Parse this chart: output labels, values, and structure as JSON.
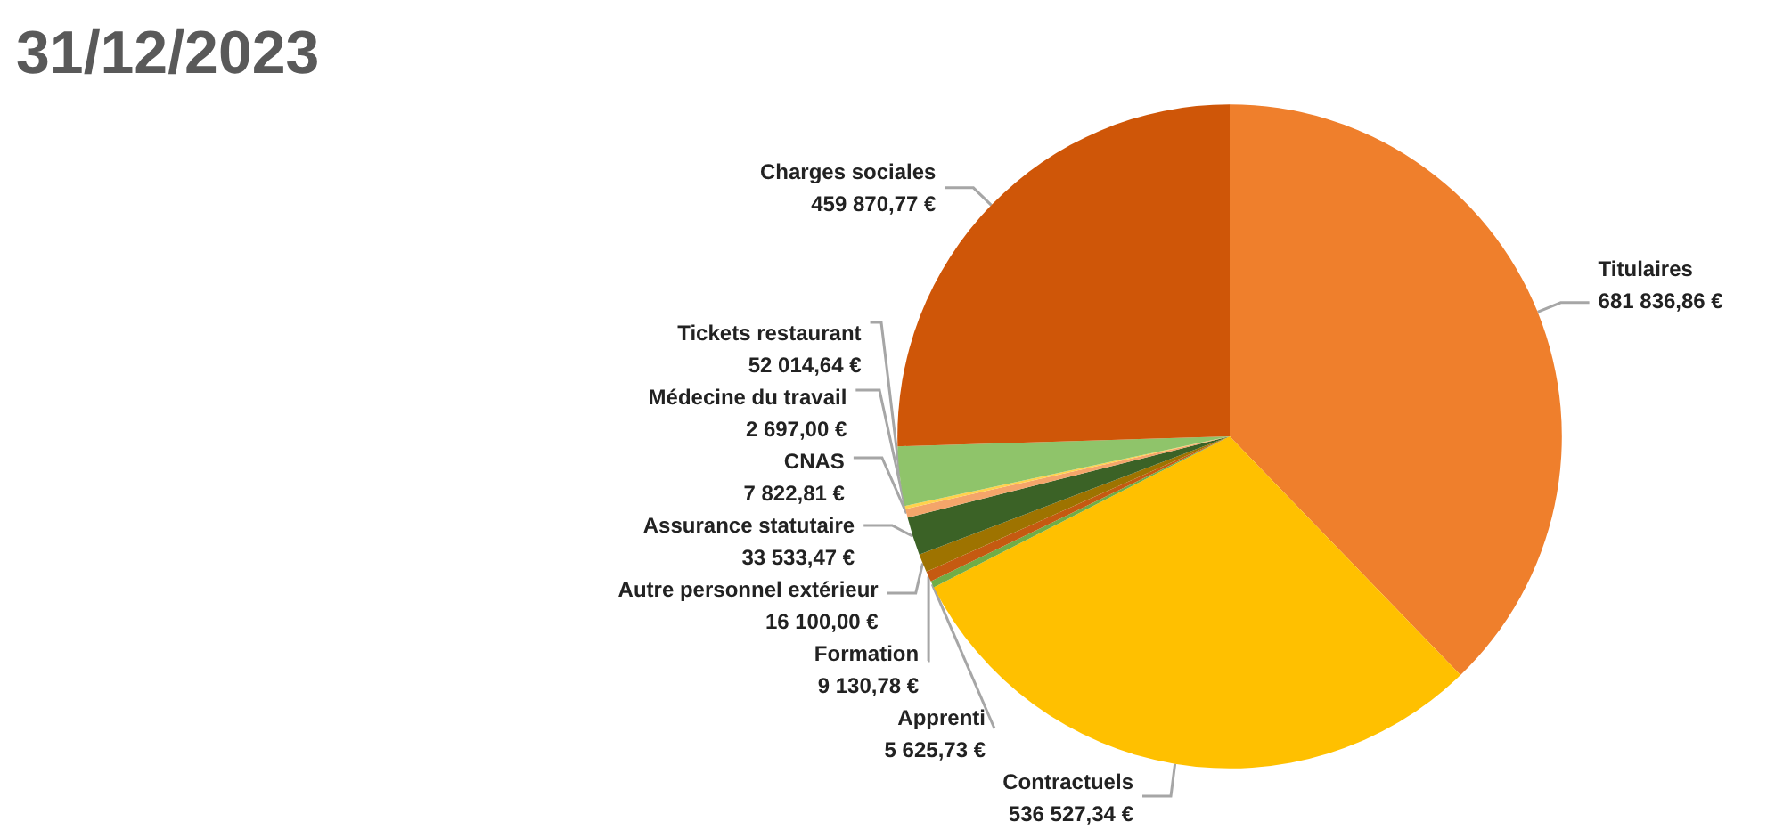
{
  "chart_data": {
    "type": "pie",
    "title": "31/12/2023",
    "categories": [
      "Titulaires",
      "Contractuels",
      "Apprenti",
      "Formation",
      "Autre personnel extérieur",
      "Assurance statutaire",
      "CNAS",
      "Médecine du travail",
      "Tickets restaurant",
      "Charges sociales"
    ],
    "values": [
      681836.86,
      536527.34,
      5625.73,
      9130.78,
      16100.0,
      33533.47,
      7822.81,
      2697.0,
      52014.64,
      459870.77
    ],
    "value_labels": [
      "681 836,86 €",
      "536 527,34 €",
      "5 625,73 €",
      "9 130,78 €",
      "16 100,00 €",
      "33 533,47 €",
      "7 822,81 €",
      "2 697,00 €",
      "52 014,64 €",
      "459 870,77 €"
    ],
    "colors": [
      "#ef7f2c",
      "#ffc000",
      "#70ad47",
      "#c55a11",
      "#9e7300",
      "#3b6226",
      "#f4a56a",
      "#ffd24d",
      "#8fc46a",
      "#cf5608"
    ],
    "legend": false
  }
}
